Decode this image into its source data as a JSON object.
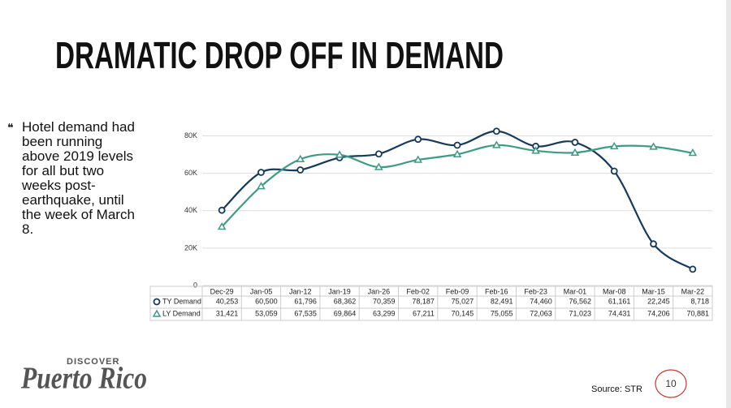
{
  "title": "DRAMATIC DROP OFF IN DEMAND",
  "bullet": "Hotel demand had been running above 2019 levels for all but two weeks post-earthquake, until the week of March 8.",
  "logo": {
    "top": "DISCOVER",
    "name": "Puerto Rico"
  },
  "source": "Source:  STR",
  "page_number": "10",
  "chart_data": {
    "type": "line",
    "categories": [
      "Dec-29",
      "Jan-05",
      "Jan-12",
      "Jan-19",
      "Jan-26",
      "Feb-02",
      "Feb-09",
      "Feb-16",
      "Feb-23",
      "Mar-01",
      "Mar-08",
      "Mar-15",
      "Mar-22"
    ],
    "series": [
      {
        "name": "TY Demand",
        "color": "#163a5c",
        "marker": "circle",
        "values": [
          40253,
          60500,
          61796,
          68362,
          70359,
          78187,
          75027,
          82491,
          74460,
          76562,
          61161,
          22245,
          8718
        ],
        "value_labels": [
          "40,253",
          "60,500",
          "61,796",
          "68,362",
          "70,359",
          "78,187",
          "75,027",
          "82,491",
          "74,460",
          "76,562",
          "61,161",
          "22,245",
          "8,718"
        ]
      },
      {
        "name": "LY Demand",
        "color": "#3f9a86",
        "marker": "triangle",
        "values": [
          31421,
          53059,
          67535,
          69864,
          63299,
          67211,
          70145,
          75055,
          72063,
          71023,
          74431,
          74206,
          70881
        ],
        "value_labels": [
          "31,421",
          "53,059",
          "67,535",
          "69,864",
          "63,299",
          "67,211",
          "70,145",
          "75,055",
          "72,063",
          "71,023",
          "74,431",
          "74,206",
          "70,881"
        ]
      }
    ],
    "ylim": [
      0,
      85000
    ],
    "yticks": [
      0,
      {
        "value": 20000,
        "label": "20K"
      },
      {
        "value": 40000,
        "label": "40K"
      },
      {
        "value": 60000,
        "label": "60K"
      },
      {
        "value": 80000,
        "label": "80K"
      }
    ],
    "grid": true
  }
}
